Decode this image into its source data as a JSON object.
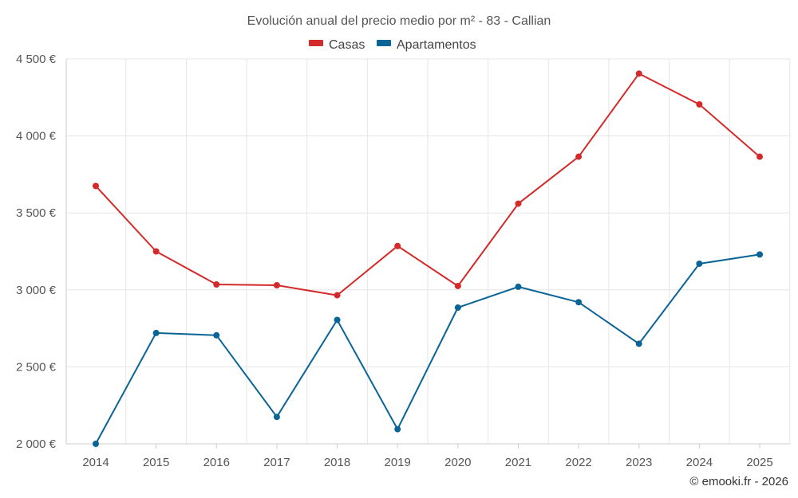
{
  "chart_data": {
    "type": "line",
    "title": "Evolución anual del precio medio por m² - 83 - Callian",
    "categories": [
      "2014",
      "2015",
      "2016",
      "2017",
      "2018",
      "2019",
      "2020",
      "2021",
      "2022",
      "2023",
      "2024",
      "2025"
    ],
    "series": [
      {
        "name": "Casas",
        "color": "#d42a2a",
        "values": [
          3675,
          3250,
          3035,
          3030,
          2965,
          3285,
          3025,
          3560,
          3865,
          4405,
          4205,
          3865
        ]
      },
      {
        "name": "Apartamentos",
        "color": "#0a6496",
        "values": [
          2000,
          2720,
          2705,
          2175,
          2805,
          2095,
          2885,
          3020,
          2920,
          2650,
          3170,
          3230
        ]
      }
    ],
    "y_ticks": [
      2000,
      2500,
      3000,
      3500,
      4000,
      4500
    ],
    "y_tick_labels": [
      "2 000 €",
      "2 500 €",
      "3 000 €",
      "3 500 €",
      "4 000 €",
      "4 500 €"
    ],
    "ylim": [
      2000,
      4500
    ],
    "xlabel": "",
    "ylabel": "",
    "legend_position": "top-center",
    "grid": true
  },
  "credit": "© emooki.fr - 2026"
}
